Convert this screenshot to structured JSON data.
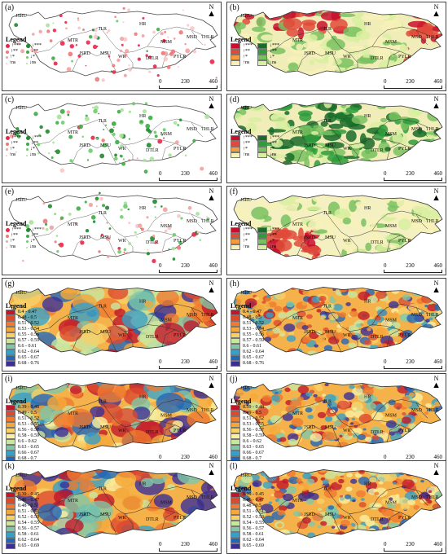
{
  "map": {
    "north_letter": "N",
    "scale": {
      "ticks": [
        "0",
        "230",
        "460"
      ],
      "unit": "km"
    },
    "legend_title": "Legend",
    "regions": [
      "JSRU",
      "MTR",
      "JLR",
      "HR",
      "MSM",
      "MSD",
      "THLR",
      "JSRD",
      "MSU",
      "WR",
      "DTLR",
      "PYLR"
    ],
    "sig_levels": [
      "***",
      "**",
      "*",
      "ns"
    ],
    "colors": {
      "inc": [
        "#e8274a",
        "#f07878",
        "#f4a0a0",
        "#f8c8c8"
      ],
      "dec": [
        "#1f8a2e",
        "#3faa45",
        "#6ccc6a",
        "#a8e29a"
      ],
      "raster_inc": [
        "#c8102e",
        "#e04a3a",
        "#f59a3d",
        "#f7f1b8"
      ],
      "raster_dec": [
        "#1a6b2a",
        "#2e9b3c",
        "#79c160",
        "#d8efa0"
      ]
    }
  },
  "panels": [
    {
      "label": "(a)",
      "kind": "points",
      "dominant": "inc"
    },
    {
      "label": "(b)",
      "kind": "raster_sig",
      "dominant": "mix_a"
    },
    {
      "label": "(c)",
      "kind": "points",
      "dominant": "dec"
    },
    {
      "label": "(d)",
      "kind": "raster_sig",
      "dominant": "dec"
    },
    {
      "label": "(e)",
      "kind": "points",
      "dominant": "mix"
    },
    {
      "label": "(f)",
      "kind": "raster_sig",
      "dominant": "calm"
    },
    {
      "label": "(g)",
      "kind": "continuous",
      "classes": [
        "0.4 - 0.47",
        "0.48 - 0.5",
        "0.51 - 0.52",
        "0.53 - 0.54",
        "0.55 - 0.56",
        "0.57 - 0.59",
        "0.6 - 0.61",
        "0.62 - 0.64",
        "0.65 - 0.67",
        "0.68 - 0.76"
      ]
    },
    {
      "label": "(h)",
      "kind": "continuous",
      "classes": [
        "0.4 - 0.47",
        "0.48 - 0.5",
        "0.51 - 0.52",
        "0.53 - 0.54",
        "0.55 - 0.56",
        "0.57 - 0.59",
        "0.6 - 0.61",
        "0.62 - 0.64",
        "0.65 - 0.67",
        "0.68 - 0.76"
      ]
    },
    {
      "label": "(i)",
      "kind": "continuous",
      "classes": [
        "0.39 - 0.48",
        "0.49 - 0.5",
        "0.51 - 0.52",
        "0.53 - 0.55",
        "0.56 - 0.57",
        "0.58 - 0.59",
        "0.6 - 0.62",
        "0.63 - 0.65",
        "0.66 - 0.67",
        "0.68 - 0.7",
        "0.71 - 0.77"
      ]
    },
    {
      "label": "(j)",
      "kind": "continuous",
      "classes": [
        "0.39 - 0.48",
        "0.49 - 0.5",
        "0.51 - 0.52",
        "0.53 - 0.55",
        "0.56 - 0.57",
        "0.58 - 0.59",
        "0.6 - 0.62",
        "0.63 - 0.65",
        "0.66 - 0.67",
        "0.68 - 0.7",
        "0.71 - 0.77"
      ]
    },
    {
      "label": "(k)",
      "kind": "continuous",
      "classes": [
        "0.39 - 0.45",
        "0.46 - 0.47",
        "0.48 - 0.5",
        "0.51 - 0.51",
        "0.52 - 0.53",
        "0.54 - 0.55",
        "0.56 - 0.57",
        "0.58 - 0.61",
        "0.62 - 0.64",
        "0.65 - 0.69"
      ]
    },
    {
      "label": "(l)",
      "kind": "continuous",
      "classes": [
        "0.39 - 0.45",
        "0.46 - 0.47",
        "0.48 - 0.5",
        "0.51 - 0.51",
        "0.52 - 0.53",
        "0.54 - 0.55",
        "0.56 - 0.57",
        "0.58 - 0.61",
        "0.62 - 0.64",
        "0.65 - 0.69"
      ]
    }
  ],
  "ramp": [
    "#c0182a",
    "#dc4a2e",
    "#ef7a30",
    "#f5a73a",
    "#f8d166",
    "#fbefa0",
    "#c9e6a0",
    "#7fc7a8",
    "#3a9fc4",
    "#2368b8",
    "#3b2f96"
  ]
}
